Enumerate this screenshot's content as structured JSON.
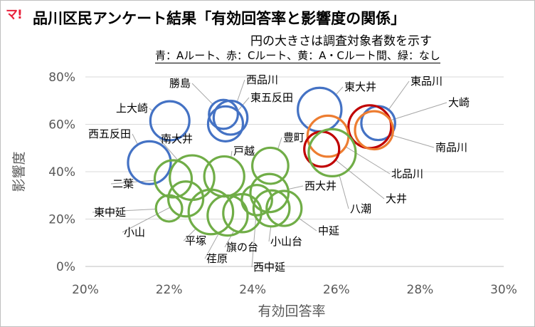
{
  "header": {
    "logo": "マ!",
    "title": "品川区民アンケート結果「有効回答率と影響度の関係」",
    "subtitle": "円の大きさは調査対象者数を示す",
    "legend_note": "青：Aルート、赤：Cルート、黄：A・Cルート間、緑：なし"
  },
  "colors": {
    "blue": "#4472c4",
    "red": "#c00000",
    "orange": "#ed7d31",
    "green": "#70ad47",
    "leader": "#a6a6a6",
    "grid": "#d9d9d9"
  },
  "chart_data": {
    "type": "scatter",
    "title": "品川区民アンケート結果「有効回答率と影響度の関係」",
    "subtitle": "円の大きさは調査対象者数を示す",
    "xlabel": "有効回答率",
    "ylabel": "影響度",
    "xlim": [
      0.2,
      0.3
    ],
    "ylim": [
      0.0,
      0.8
    ],
    "x_ticks": [
      "20%",
      "22%",
      "24%",
      "26%",
      "28%",
      "30%"
    ],
    "y_ticks": [
      "0%",
      "20%",
      "40%",
      "60%",
      "80%"
    ],
    "grid": "horizontal",
    "points": [
      {
        "name": "上大崎",
        "x": 0.2202,
        "y": 0.615,
        "size": 1.0,
        "group": "blue"
      },
      {
        "name": "勝島",
        "x": 0.233,
        "y": 0.642,
        "size": 0.55,
        "group": "blue"
      },
      {
        "name": "西品川",
        "x": 0.2347,
        "y": 0.628,
        "size": 0.75,
        "group": "blue"
      },
      {
        "name": "東五反田",
        "x": 0.2335,
        "y": 0.602,
        "size": 0.8,
        "group": "blue"
      },
      {
        "name": "西五反田",
        "x": 0.2153,
        "y": 0.438,
        "size": 1.2,
        "group": "blue"
      },
      {
        "name": "東大井",
        "x": 0.256,
        "y": 0.662,
        "size": 1.25,
        "group": "blue"
      },
      {
        "name": "東品川",
        "x": 0.27,
        "y": 0.605,
        "size": 0.75,
        "group": "blue"
      },
      {
        "name": "大崎",
        "x": 0.268,
        "y": 0.59,
        "size": 1.2,
        "group": "red"
      },
      {
        "name": "南品川",
        "x": 0.269,
        "y": 0.575,
        "size": 0.95,
        "group": "orange"
      },
      {
        "name": "北品川",
        "x": 0.258,
        "y": 0.55,
        "size": 1.1,
        "group": "orange"
      },
      {
        "name": "大井",
        "x": 0.2565,
        "y": 0.495,
        "size": 0.8,
        "group": "red"
      },
      {
        "name": "八潮",
        "x": 0.259,
        "y": 0.48,
        "size": 1.45,
        "group": "green"
      },
      {
        "name": "豊町",
        "x": 0.2442,
        "y": 0.425,
        "size": 0.85,
        "group": "green"
      },
      {
        "name": "戸越",
        "x": 0.2332,
        "y": 0.38,
        "size": 1.05,
        "group": "green"
      },
      {
        "name": "南大井",
        "x": 0.2255,
        "y": 0.375,
        "size": 1.3,
        "group": "green"
      },
      {
        "name": "二葉",
        "x": 0.221,
        "y": 0.37,
        "size": 0.9,
        "group": "green"
      },
      {
        "name": "西大井",
        "x": 0.244,
        "y": 0.31,
        "size": 0.95,
        "group": "green"
      },
      {
        "name": "東中延",
        "x": 0.22,
        "y": 0.245,
        "size": 0.45,
        "group": "green"
      },
      {
        "name": "小山",
        "x": 0.224,
        "y": 0.285,
        "size": 0.8,
        "group": "green"
      },
      {
        "name": "平塚",
        "x": 0.23,
        "y": 0.23,
        "size": 1.3,
        "group": "green"
      },
      {
        "name": "荏原",
        "x": 0.234,
        "y": 0.215,
        "size": 1.05,
        "group": "green"
      },
      {
        "name": "旗の台",
        "x": 0.2375,
        "y": 0.225,
        "size": 0.95,
        "group": "green"
      },
      {
        "name": "西中延",
        "x": 0.241,
        "y": 0.28,
        "size": 0.6,
        "group": "green"
      },
      {
        "name": "小山台",
        "x": 0.2445,
        "y": 0.245,
        "size": 0.85,
        "group": "green"
      },
      {
        "name": "中延",
        "x": 0.2475,
        "y": 0.245,
        "size": 0.8,
        "group": "green"
      }
    ]
  }
}
